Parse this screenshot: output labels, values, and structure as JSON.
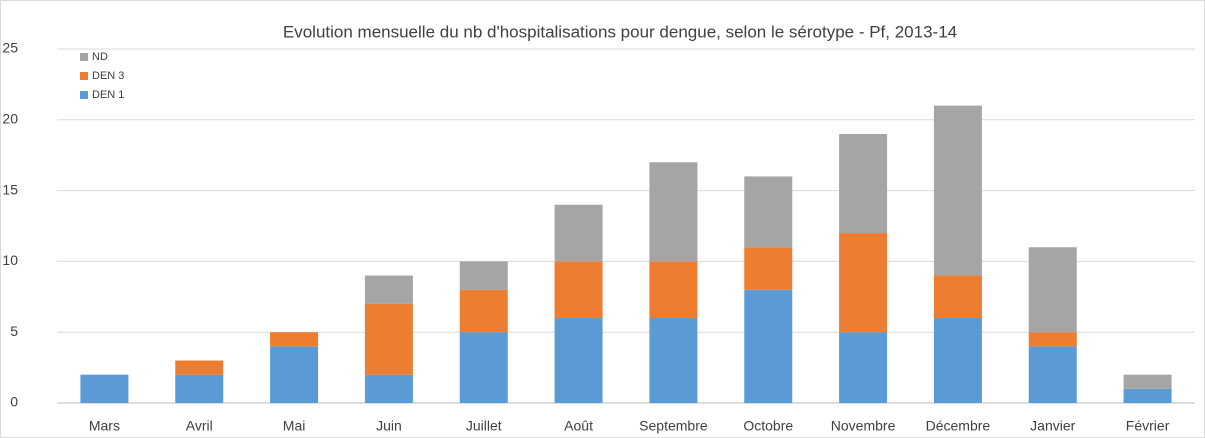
{
  "chart_data": {
    "type": "stacked_bar",
    "title": "Evolution mensuelle du nb d'hospitalisations pour dengue, selon le sérotype - Pf, 2013-14",
    "categories": [
      "Mars",
      "Avril",
      "Mai",
      "Juin",
      "Juillet",
      "Août",
      "Septembre",
      "Octobre",
      "Novembre",
      "Décembre",
      "Janvier",
      "Février"
    ],
    "series": [
      {
        "name": "DEN 1",
        "color": "#5b9bd5",
        "values": [
          2,
          2,
          4,
          2,
          5,
          6,
          6,
          8,
          5,
          6,
          4,
          1
        ]
      },
      {
        "name": "DEN 3",
        "color": "#ed7d31",
        "values": [
          0,
          1,
          1,
          5,
          3,
          4,
          4,
          3,
          7,
          3,
          1,
          0
        ]
      },
      {
        "name": "ND",
        "color": "#a5a5a5",
        "values": [
          0,
          0,
          0,
          2,
          2,
          4,
          7,
          5,
          7,
          12,
          6,
          1
        ]
      }
    ],
    "ylim": [
      0,
      25
    ],
    "yticks": [
      0,
      5,
      10,
      15,
      20,
      25
    ],
    "grid": true,
    "legend": "top-left"
  }
}
